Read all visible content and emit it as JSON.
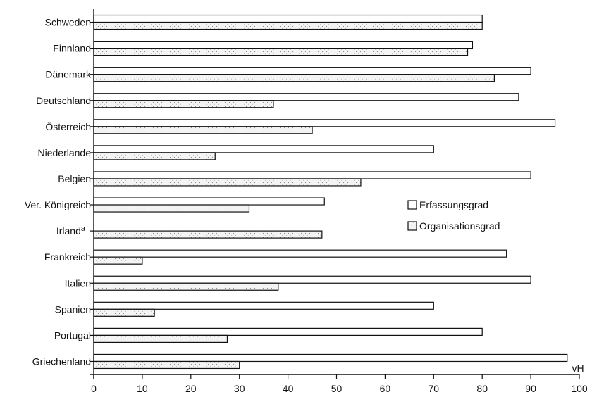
{
  "chart_data": {
    "type": "bar",
    "orientation": "horizontal",
    "categories": [
      "Schweden",
      "Finnland",
      "Dänemark",
      "Deutschland",
      "Österreich",
      "Niederlande",
      "Belgien",
      "Ver. Königreich",
      "Irland",
      "Frankreich",
      "Italien",
      "Spanien",
      "Portugal",
      "Griechenland"
    ],
    "category_superscripts": {
      "Irland": "a"
    },
    "series": [
      {
        "name": "Erfassungsgrad",
        "values": [
          80,
          78,
          90,
          87.5,
          95,
          70,
          90,
          47.5,
          null,
          85,
          90,
          70,
          80,
          97.5
        ],
        "color": "#ffffff"
      },
      {
        "name": "Organisationsgrad",
        "values": [
          80,
          77,
          82.5,
          37,
          45,
          25,
          55,
          32,
          47,
          10,
          38,
          12.5,
          27.5,
          30
        ],
        "color": "#e8e8e8"
      }
    ],
    "x_ticks": [
      0,
      10,
      20,
      30,
      40,
      50,
      60,
      70,
      80,
      90,
      100
    ],
    "xlim": [
      0,
      100
    ],
    "xlabel": "vH",
    "legend_position": "right-middle",
    "grid": false
  }
}
